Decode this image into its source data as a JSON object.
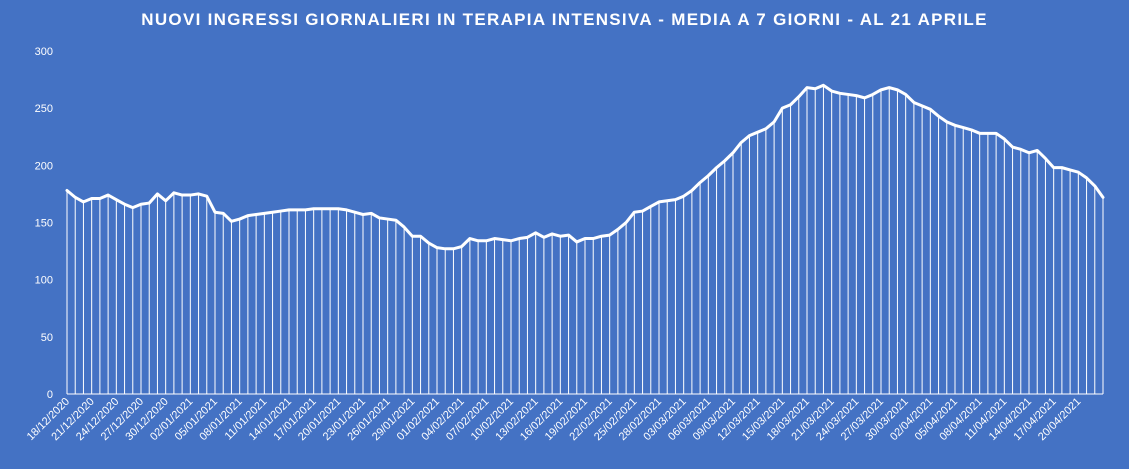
{
  "chart_data": {
    "type": "line",
    "title": "NUOVI INGRESSI  GIORNALIERI  IN TERAPIA INTENSIVA  - MEDIA A 7 GIORNI - AL 21 APRILE",
    "xlabel": "",
    "ylabel": "",
    "ylim": [
      0,
      300
    ],
    "yticks": [
      0,
      50,
      100,
      150,
      200,
      250,
      300
    ],
    "grid": false,
    "legend": "none",
    "style": "white line with white vertical drop lines to baseline",
    "colors": {
      "background": "#4472c4",
      "series": "#ffffff"
    },
    "x_tick_labels": [
      "18/12/2020",
      "21/12/2020",
      "24/12/2020",
      "27/12/2020",
      "30/12/2020",
      "02/01/2021",
      "05/01/2021",
      "08/01/2021",
      "11/01/2021",
      "14/01/2021",
      "17/01/2021",
      "20/01/2021",
      "23/01/2021",
      "26/01/2021",
      "29/01/2021",
      "01/02/2021",
      "04/02/2021",
      "07/02/2021",
      "10/02/2021",
      "13/02/2021",
      "16/02/2021",
      "19/02/2021",
      "22/02/2021",
      "25/02/2021",
      "28/02/2021",
      "03/03/2021",
      "06/03/2021",
      "09/03/2021",
      "12/03/2021",
      "15/03/2021",
      "18/03/2021",
      "21/03/2021",
      "24/03/2021",
      "27/03/2021",
      "30/03/2021",
      "02/04/2021",
      "05/04/2021",
      "08/04/2021",
      "11/04/2021",
      "14/04/2021",
      "17/04/2021",
      "20/04/2021"
    ],
    "series": [
      {
        "x_start": "18/12/2020",
        "x_end": "21/04/2021",
        "values": [
          178,
          172,
          168,
          171,
          171,
          174,
          170,
          166,
          163,
          166,
          167,
          175,
          169,
          176,
          174,
          174,
          175,
          173,
          159,
          158,
          151,
          153,
          156,
          157,
          158,
          159,
          160,
          161,
          161,
          161,
          162,
          162,
          162,
          162,
          161,
          159,
          157,
          158,
          154,
          153,
          152,
          146,
          138,
          138,
          132,
          128,
          127,
          127,
          129,
          136,
          134,
          134,
          136,
          135,
          134,
          136,
          137,
          141,
          137,
          140,
          138,
          139,
          133,
          136,
          136,
          138,
          139,
          144,
          150,
          159,
          160,
          164,
          168,
          169,
          170,
          173,
          178,
          185,
          191,
          198,
          204,
          211,
          220,
          226,
          229,
          232,
          238,
          250,
          253,
          260,
          268,
          267,
          270,
          265,
          263,
          262,
          261,
          259,
          262,
          266,
          268,
          266,
          262,
          255,
          252,
          249,
          243,
          238,
          235,
          233,
          231,
          228,
          228,
          228,
          223,
          216,
          214,
          211,
          213,
          206,
          198,
          198,
          196,
          194,
          189,
          182,
          172
        ]
      }
    ]
  }
}
